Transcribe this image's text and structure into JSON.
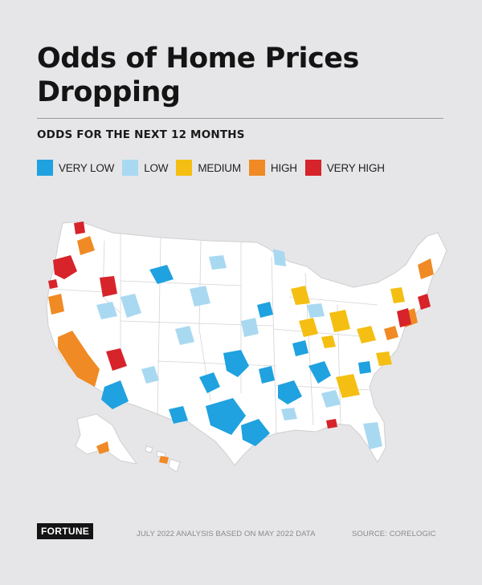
{
  "title": "Odds of Home Prices Dropping",
  "subtitle": "ODDS FOR THE NEXT 12 MONTHS",
  "legend": [
    {
      "label": "VERY LOW",
      "color": "#1fa2df"
    },
    {
      "label": "LOW",
      "color": "#a9d9f1"
    },
    {
      "label": "MEDIUM",
      "color": "#f4bf12"
    },
    {
      "label": "HIGH",
      "color": "#f08a24"
    },
    {
      "label": "VERY HIGH",
      "color": "#d7232a"
    }
  ],
  "map": {
    "region": "United States (county-level)",
    "base_color": "#ffffff",
    "border_color": "#cfcfcf"
  },
  "footer": {
    "brand": "FORTUNE",
    "note": "JULY 2022 ANALYSIS BASED ON MAY 2022 DATA",
    "source": "SOURCE: CORELOGIC"
  }
}
